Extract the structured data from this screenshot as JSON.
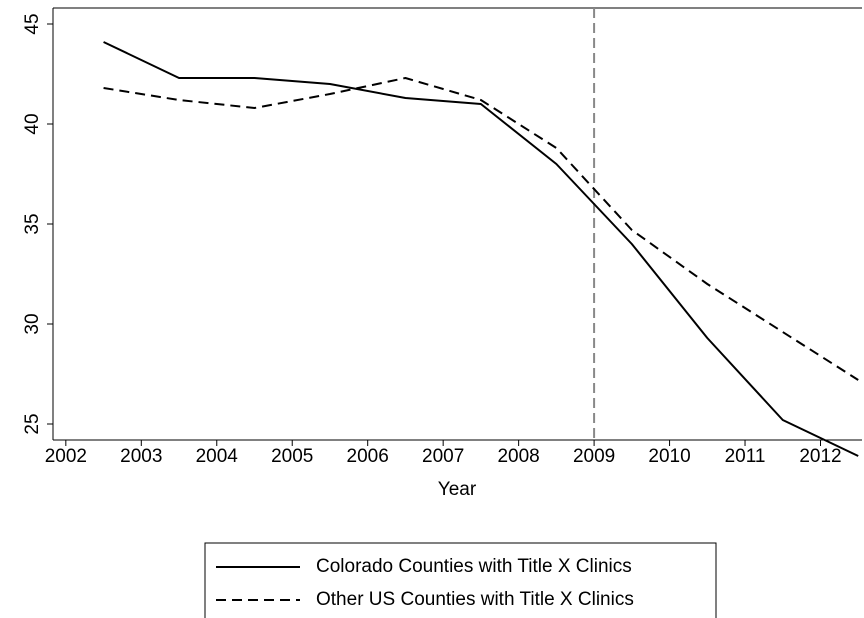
{
  "chart_data": {
    "type": "line",
    "x_label": "Year",
    "x": [
      2002.5,
      2003.5,
      2004.5,
      2005.5,
      2006.5,
      2007.5,
      2008.5,
      2009.5,
      2010.5,
      2011.5,
      2012.5
    ],
    "series": [
      {
        "name": "Colorado Counties with Title X Clinics",
        "color": "#000000",
        "dash": "solid",
        "values": [
          44.1,
          42.3,
          42.3,
          42.0,
          41.3,
          41.0,
          38.0,
          34.0,
          29.3,
          25.2,
          23.4
        ]
      },
      {
        "name": "Other US Counties with Title X Clinics",
        "color": "#000000",
        "dash": "dashed",
        "values": [
          41.8,
          41.2,
          40.8,
          41.5,
          42.3,
          41.2,
          38.8,
          34.7,
          32.0,
          29.6,
          27.2
        ]
      }
    ],
    "xlim": [
      2001.83,
      2012.55
    ],
    "ylim": [
      24.2,
      45.8
    ],
    "xticks": [
      2002,
      2003,
      2004,
      2005,
      2006,
      2007,
      2008,
      2009,
      2010,
      2011,
      2012
    ],
    "yticks": [
      25,
      30,
      35,
      40,
      45
    ],
    "vlines": [
      2009
    ],
    "vline_color": "#888888",
    "legend": "bottom",
    "grid": false
  }
}
